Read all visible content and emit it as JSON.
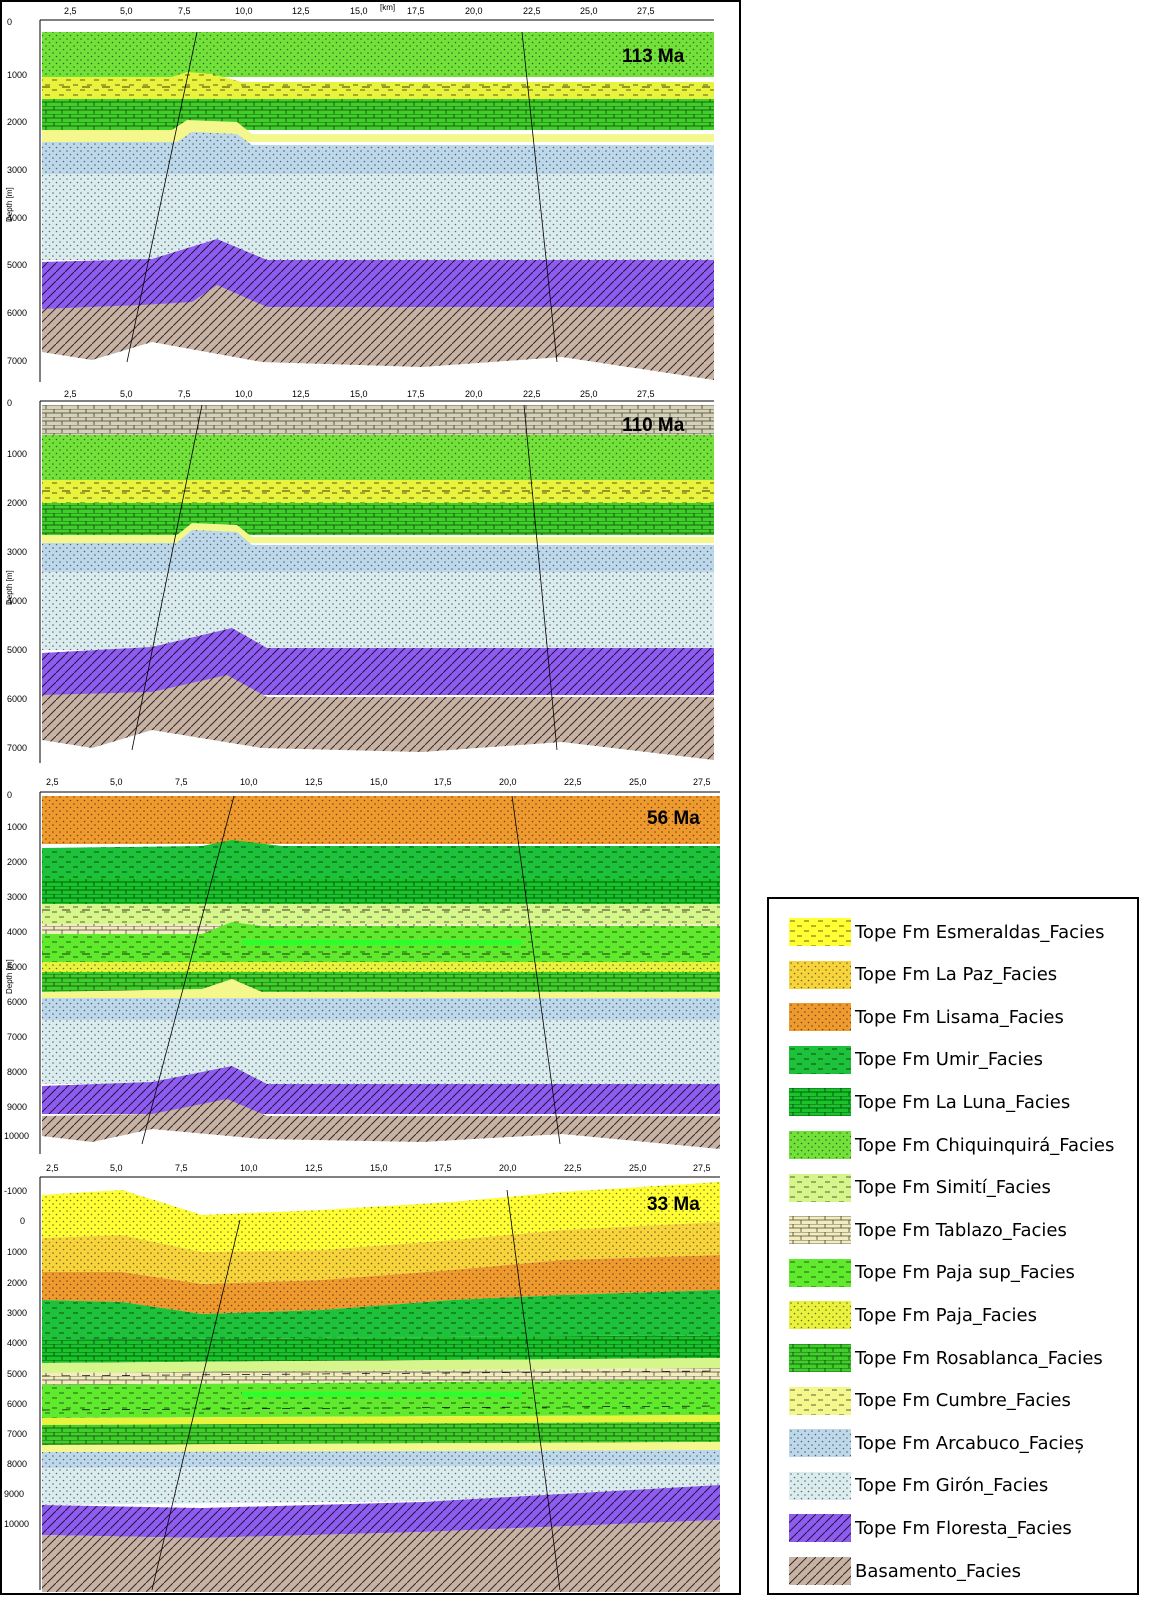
{
  "panels": [
    {
      "age": "113 Ma",
      "y_ticks": [
        "0",
        "1000",
        "2000",
        "3000",
        "4000",
        "5000",
        "6000",
        "7000"
      ],
      "y_label": "Depth [m]"
    },
    {
      "age": "110 Ma",
      "y_ticks": [
        "0",
        "1000",
        "2000",
        "3000",
        "4000",
        "5000",
        "6000",
        "7000"
      ],
      "y_label": "Depth [m]"
    },
    {
      "age": "56 Ma",
      "y_ticks": [
        "0",
        "1000",
        "2000",
        "3000",
        "4000",
        "5000",
        "6000",
        "7000",
        "8000",
        "9000",
        "10000"
      ],
      "y_label": "Depth [m]"
    },
    {
      "age": "33 Ma",
      "y_ticks": [
        "-1000",
        "0",
        "1000",
        "2000",
        "3000",
        "4000",
        "5000",
        "6000",
        "7000",
        "8000",
        "9000",
        "10000"
      ],
      "y_label": ""
    }
  ],
  "x_ticks": [
    "2,5",
    "5,0",
    "7,5",
    "10,0",
    "12,5",
    "15,0",
    "17,5",
    "20,0",
    "22,5",
    "25,0",
    "27,5"
  ],
  "x_unit": "[km]",
  "legend": [
    {
      "label": "Tope Fm Esmeraldas_Facies",
      "color": "#ffff33",
      "pattern": "dash"
    },
    {
      "label": "Tope Fm La Paz_Facies",
      "color": "#f7d43c",
      "pattern": "dots"
    },
    {
      "label": "Tope Fm Lisama_Facies",
      "color": "#ef9a2e",
      "pattern": "dots"
    },
    {
      "label": "Tope Fm Umir_Facies",
      "color": "#1ec23a",
      "pattern": "dash"
    },
    {
      "label": "Tope Fm La Luna_Facies",
      "color": "#19c42a",
      "pattern": "brick"
    },
    {
      "label": "Tope Fm Chiquinquirá_Facies",
      "color": "#72e23a",
      "pattern": "dots"
    },
    {
      "label": "Tope Fm Simití_Facies",
      "color": "#d6f58a",
      "pattern": "dash"
    },
    {
      "label": "Tope Fm Tablazo_Facies",
      "color": "#f2ecbe",
      "pattern": "brick"
    },
    {
      "label": "Tope Fm Paja sup_Facies",
      "color": "#60ea2e",
      "pattern": "dash"
    },
    {
      "label": "Tope Fm Paja_Facies",
      "color": "#e9f23c",
      "pattern": "dots"
    },
    {
      "label": "Tope Fm Rosablanca_Facies",
      "color": "#3fcf2a",
      "pattern": "brick"
    },
    {
      "label": "Tope Fm Cumbre_Facies",
      "color": "#f3f78c",
      "pattern": "dash"
    },
    {
      "label": "Tope Fm Arcabuco_Facieș",
      "color": "#bdd8ea",
      "pattern": "dots"
    },
    {
      "label": "Tope Fm Girón_Facies",
      "color": "#dbecef",
      "pattern": "dots"
    },
    {
      "label": "Tope Fm Floresta_Facies",
      "color": "#8f5cf2",
      "pattern": "slash"
    },
    {
      "label": "Basamento_Facies",
      "color": "#c8b2a4",
      "pattern": "slash"
    }
  ]
}
